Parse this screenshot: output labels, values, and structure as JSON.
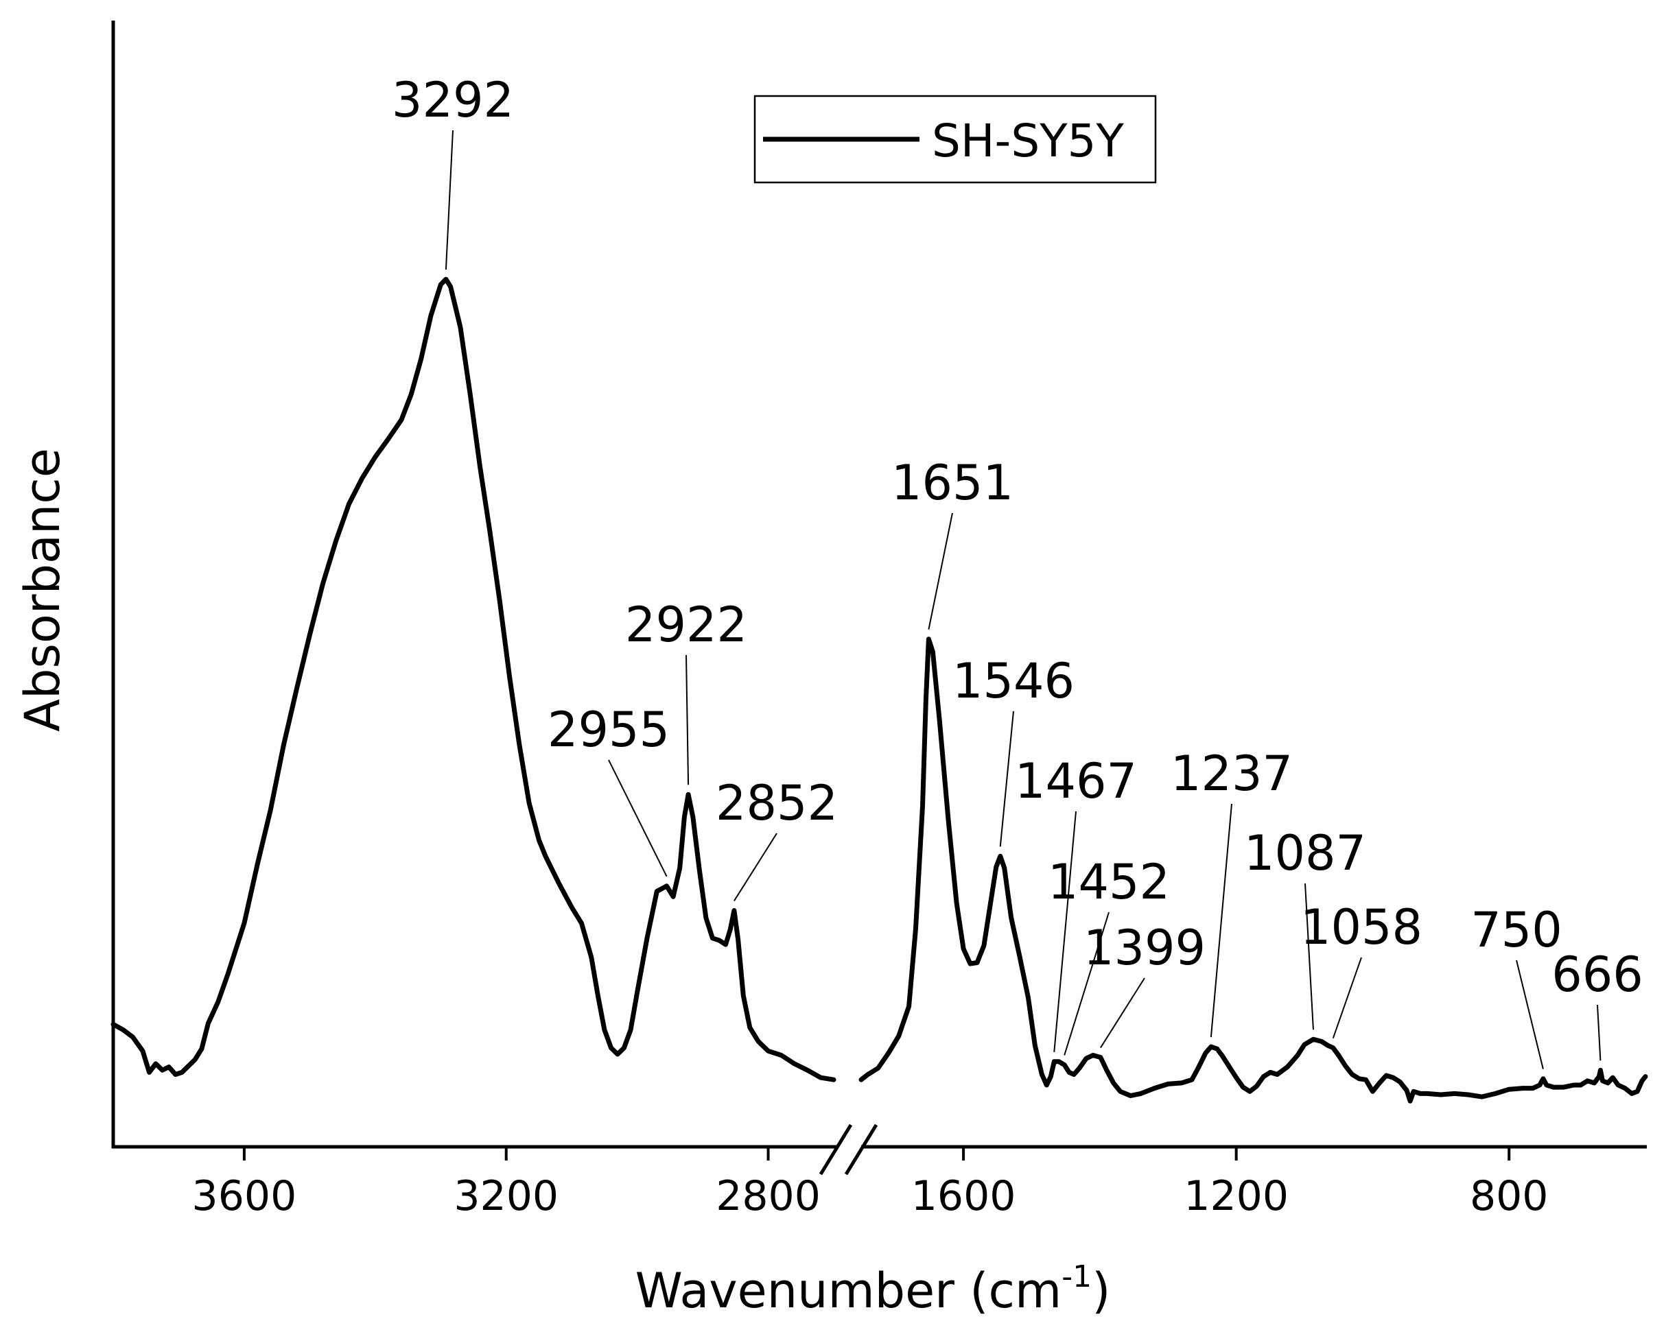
{
  "chart_data": {
    "type": "line",
    "title": "",
    "xlabel": "Wavenumber (cm",
    "xlabel_superscript": "-1",
    "xlabel_suffix": ")",
    "ylabel": "Absorbance",
    "x_direction": "reversed",
    "axis_break": [
      1750,
      2700
    ],
    "x_segments": [
      {
        "range": [
          3800,
          2700
        ],
        "ticks": [
          "3600",
          "3200",
          "2800"
        ],
        "tick_values": [
          3600,
          3200,
          2800
        ]
      },
      {
        "range": [
          1750,
          600
        ],
        "ticks": [
          "1600",
          "1200",
          "800"
        ],
        "tick_values": [
          1600,
          1200,
          800
        ]
      }
    ],
    "ylim": [
      0,
      100
    ],
    "y_ticks_shown": false,
    "grid": false,
    "legend": {
      "position": "top-center",
      "entries": [
        "SH-SY5Y"
      ]
    },
    "series": [
      {
        "name": "SH-SY5Y",
        "color": "#000000",
        "segments": [
          [
            [
              3800,
              11.5
            ],
            [
              3785,
              11.0
            ],
            [
              3770,
              10.3
            ],
            [
              3755,
              9.0
            ],
            [
              3745,
              7.0
            ],
            [
              3735,
              7.8
            ],
            [
              3725,
              7.2
            ],
            [
              3715,
              7.5
            ],
            [
              3705,
              6.8
            ],
            [
              3695,
              7.0
            ],
            [
              3685,
              7.6
            ],
            [
              3675,
              8.2
            ],
            [
              3665,
              9.2
            ],
            [
              3655,
              11.6
            ],
            [
              3640,
              13.6
            ],
            [
              3625,
              16.2
            ],
            [
              3600,
              21.0
            ],
            [
              3580,
              26.5
            ],
            [
              3560,
              31.6
            ],
            [
              3540,
              37.7
            ],
            [
              3520,
              43.0
            ],
            [
              3500,
              48.1
            ],
            [
              3480,
              52.9
            ],
            [
              3460,
              56.9
            ],
            [
              3440,
              60.4
            ],
            [
              3420,
              62.8
            ],
            [
              3400,
              64.8
            ],
            [
              3380,
              66.5
            ],
            [
              3360,
              68.3
            ],
            [
              3345,
              70.7
            ],
            [
              3330,
              74.0
            ],
            [
              3315,
              78.1
            ],
            [
              3300,
              81.0
            ],
            [
              3292,
              81.5
            ],
            [
              3285,
              80.8
            ],
            [
              3270,
              77.0
            ],
            [
              3255,
              70.7
            ],
            [
              3240,
              63.9
            ],
            [
              3225,
              57.8
            ],
            [
              3210,
              51.3
            ],
            [
              3195,
              44.2
            ],
            [
              3180,
              37.8
            ],
            [
              3165,
              32.3
            ],
            [
              3150,
              28.8
            ],
            [
              3140,
              27.3
            ],
            [
              3120,
              24.8
            ],
            [
              3100,
              22.5
            ],
            [
              3085,
              21.0
            ],
            [
              3070,
              17.8
            ],
            [
              3060,
              14.2
            ],
            [
              3050,
              11.0
            ],
            [
              3040,
              9.3
            ],
            [
              3030,
              8.7
            ],
            [
              3020,
              9.3
            ],
            [
              3010,
              11.0
            ],
            [
              3000,
              14.5
            ],
            [
              2985,
              19.6
            ],
            [
              2970,
              24.0
            ],
            [
              2955,
              24.5
            ],
            [
              2945,
              23.5
            ],
            [
              2935,
              26.2
            ],
            [
              2928,
              31.0
            ],
            [
              2922,
              33.1
            ],
            [
              2915,
              31.0
            ],
            [
              2905,
              26.0
            ],
            [
              2895,
              21.5
            ],
            [
              2885,
              19.6
            ],
            [
              2875,
              19.4
            ],
            [
              2865,
              19.0
            ],
            [
              2858,
              20.4
            ],
            [
              2852,
              22.2
            ],
            [
              2846,
              19.5
            ],
            [
              2838,
              14.2
            ],
            [
              2828,
              11.2
            ],
            [
              2815,
              9.9
            ],
            [
              2800,
              9.0
            ],
            [
              2780,
              8.6
            ],
            [
              2760,
              7.8
            ],
            [
              2740,
              7.2
            ],
            [
              2720,
              6.5
            ],
            [
              2700,
              6.3
            ]
          ],
          [
            [
              1750,
              6.3
            ],
            [
              1740,
              6.8
            ],
            [
              1725,
              7.4
            ],
            [
              1710,
              8.8
            ],
            [
              1695,
              10.4
            ],
            [
              1680,
              13.2
            ],
            [
              1670,
              20.5
            ],
            [
              1660,
              32.0
            ],
            [
              1655,
              42.0
            ],
            [
              1651,
              47.7
            ],
            [
              1645,
              46.5
            ],
            [
              1635,
              40.0
            ],
            [
              1622,
              30.6
            ],
            [
              1610,
              22.9
            ],
            [
              1600,
              18.6
            ],
            [
              1590,
              17.2
            ],
            [
              1580,
              17.3
            ],
            [
              1570,
              18.9
            ],
            [
              1560,
              23.0
            ],
            [
              1552,
              26.3
            ],
            [
              1546,
              27.3
            ],
            [
              1540,
              26.2
            ],
            [
              1530,
              21.5
            ],
            [
              1518,
              18.0
            ],
            [
              1505,
              14.0
            ],
            [
              1495,
              9.5
            ],
            [
              1485,
              6.8
            ],
            [
              1478,
              5.8
            ],
            [
              1472,
              6.6
            ],
            [
              1467,
              8.0
            ],
            [
              1460,
              8.0
            ],
            [
              1452,
              7.7
            ],
            [
              1445,
              7.0
            ],
            [
              1438,
              6.8
            ],
            [
              1430,
              7.4
            ],
            [
              1420,
              8.3
            ],
            [
              1410,
              8.6
            ],
            [
              1399,
              8.4
            ],
            [
              1390,
              7.2
            ],
            [
              1380,
              6.0
            ],
            [
              1370,
              5.2
            ],
            [
              1355,
              4.8
            ],
            [
              1340,
              5.0
            ],
            [
              1320,
              5.5
            ],
            [
              1300,
              5.9
            ],
            [
              1280,
              6.0
            ],
            [
              1265,
              6.3
            ],
            [
              1255,
              7.5
            ],
            [
              1245,
              8.8
            ],
            [
              1237,
              9.4
            ],
            [
              1228,
              9.2
            ],
            [
              1220,
              8.5
            ],
            [
              1210,
              7.5
            ],
            [
              1200,
              6.5
            ],
            [
              1190,
              5.6
            ],
            [
              1180,
              5.2
            ],
            [
              1170,
              5.7
            ],
            [
              1160,
              6.6
            ],
            [
              1150,
              7.0
            ],
            [
              1140,
              6.8
            ],
            [
              1125,
              7.5
            ],
            [
              1110,
              8.6
            ],
            [
              1100,
              9.6
            ],
            [
              1087,
              10.1
            ],
            [
              1075,
              9.9
            ],
            [
              1065,
              9.5
            ],
            [
              1058,
              9.3
            ],
            [
              1050,
              8.6
            ],
            [
              1040,
              7.6
            ],
            [
              1030,
              6.8
            ],
            [
              1020,
              6.4
            ],
            [
              1010,
              6.3
            ],
            [
              1000,
              5.2
            ],
            [
              990,
              6.0
            ],
            [
              980,
              6.7
            ],
            [
              970,
              6.5
            ],
            [
              960,
              6.1
            ],
            [
              950,
              5.3
            ],
            [
              945,
              4.3
            ],
            [
              940,
              5.2
            ],
            [
              930,
              5.0
            ],
            [
              920,
              5.0
            ],
            [
              900,
              4.9
            ],
            [
              880,
              5.0
            ],
            [
              860,
              4.9
            ],
            [
              840,
              4.7
            ],
            [
              820,
              5.0
            ],
            [
              800,
              5.4
            ],
            [
              780,
              5.5
            ],
            [
              765,
              5.5
            ],
            [
              755,
              5.8
            ],
            [
              750,
              6.4
            ],
            [
              745,
              5.8
            ],
            [
              735,
              5.6
            ],
            [
              720,
              5.6
            ],
            [
              705,
              5.8
            ],
            [
              695,
              5.8
            ],
            [
              685,
              6.2
            ],
            [
              675,
              6.0
            ],
            [
              668,
              6.6
            ],
            [
              666,
              7.2
            ],
            [
              663,
              6.2
            ],
            [
              655,
              6.0
            ],
            [
              648,
              6.5
            ],
            [
              640,
              5.8
            ],
            [
              630,
              5.5
            ],
            [
              620,
              5.0
            ],
            [
              612,
              5.2
            ],
            [
              605,
              6.2
            ],
            [
              600,
              6.6
            ]
          ]
        ]
      }
    ],
    "annotations": [
      {
        "text": "3292",
        "x": 3292
      },
      {
        "text": "2955",
        "x": 2955
      },
      {
        "text": "2922",
        "x": 2922
      },
      {
        "text": "2852",
        "x": 2852
      },
      {
        "text": "1651",
        "x": 1651
      },
      {
        "text": "1546",
        "x": 1546
      },
      {
        "text": "1467",
        "x": 1467
      },
      {
        "text": "1452",
        "x": 1452
      },
      {
        "text": "1399",
        "x": 1399
      },
      {
        "text": "1237",
        "x": 1237
      },
      {
        "text": "1087",
        "x": 1087
      },
      {
        "text": "1058",
        "x": 1058
      },
      {
        "text": "750",
        "x": 750
      },
      {
        "text": "666",
        "x": 666
      }
    ]
  }
}
